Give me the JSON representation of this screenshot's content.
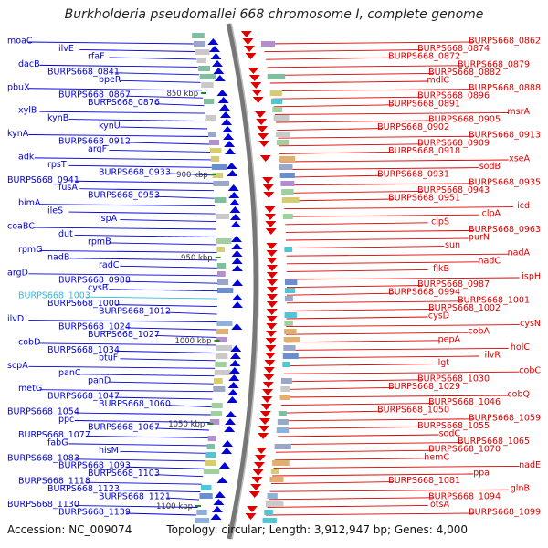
{
  "title": "Burkholderia pseudomallei 668 chromosome I, complete genome",
  "footer": {
    "accession": "Accession: NC_009074",
    "topology": "Topology: circular; Length: 3,912,947 bp; Genes: 4,000"
  },
  "colors": {
    "forward": "#0000dd",
    "reverse": "#dd0000",
    "highlight": "#33bbdd",
    "backbone": "#777777",
    "tick": "#228822"
  },
  "ticks": [
    "850 kbp",
    "900 kbp",
    "950 kbp",
    "1000 kbp",
    "1050 kbp",
    "1100 kbp"
  ],
  "left_labels": [
    "moaC",
    "ilvE",
    "rfaF",
    "dacB",
    "BURPS668_0841",
    "bpeR",
    "pbuX",
    "BURPS668_0867",
    "BURPS668_0876",
    "xylB",
    "kynB",
    "kynU",
    "kynA",
    "BURPS668_0912",
    "argF",
    "adk",
    "rpsT",
    "BURPS668_0933",
    "BURPS668_0941",
    "fusA",
    "BURPS668_0953",
    "bimA",
    "ileS",
    "lspA",
    "coaBC",
    "dut",
    "rpmB",
    "rpmG",
    "nadB",
    "radC",
    "argD",
    "BURPS668_0988",
    "cysB",
    "BURPS668_1003",
    "BURPS668_1000",
    "BURPS668_1012",
    "ilvD",
    "BURPS668_1024",
    "BURPS668_1027",
    "cobD",
    "BURPS668_1034",
    "btuF",
    "scpA",
    "panC",
    "panD",
    "metG",
    "BURPS668_1047",
    "BURPS668_1060",
    "BURPS668_1054",
    "ppc",
    "BURPS668_1067",
    "BURPS668_1077",
    "fabG",
    "hisM",
    "BURPS668_1083",
    "BURPS668_1093",
    "BURPS668_1103",
    "BURPS668_1118",
    "BURPS668_1123",
    "BURPS668_1121",
    "BURPS668_1130",
    "BURPS668_1139"
  ],
  "right_labels": [
    "BURPS668_0862",
    "BURPS668_0874",
    "BURPS668_0872",
    "BURPS668_0879",
    "BURPS668_0882",
    "mdlC",
    "BURPS668_0888",
    "BURPS668_0896",
    "BURPS668_0891",
    "msrA",
    "BURPS668_0905",
    "BURPS668_0902",
    "BURPS668_0913",
    "BURPS668_0909",
    "BURPS668_0918",
    "xseA",
    "sodB",
    "BURPS668_0931",
    "BURPS668_0935",
    "BURPS668_0943",
    "BURPS668_0951",
    "icd",
    "clpA",
    "clpS",
    "BURPS668_0963",
    "purN",
    "sun",
    "nadA",
    "nadC",
    "flkB",
    "ispH",
    "BURPS668_0987",
    "BURPS668_0994",
    "BURPS668_1001",
    "BURPS668_1002",
    "cysD",
    "cysN",
    "cobA",
    "pepA",
    "holC",
    "ilvR",
    "lgt",
    "cobC",
    "BURPS668_1030",
    "BURPS668_1029",
    "cobQ",
    "BURPS668_1046",
    "BURPS668_1050",
    "BURPS668_1059",
    "BURPS668_1055",
    "sodC",
    "BURPS668_1065",
    "BURPS668_1070",
    "hemC",
    "nadE",
    "ppa",
    "BURPS668_1081",
    "glnB",
    "BURPS668_1094",
    "otsA",
    "BURPS668_1099"
  ]
}
